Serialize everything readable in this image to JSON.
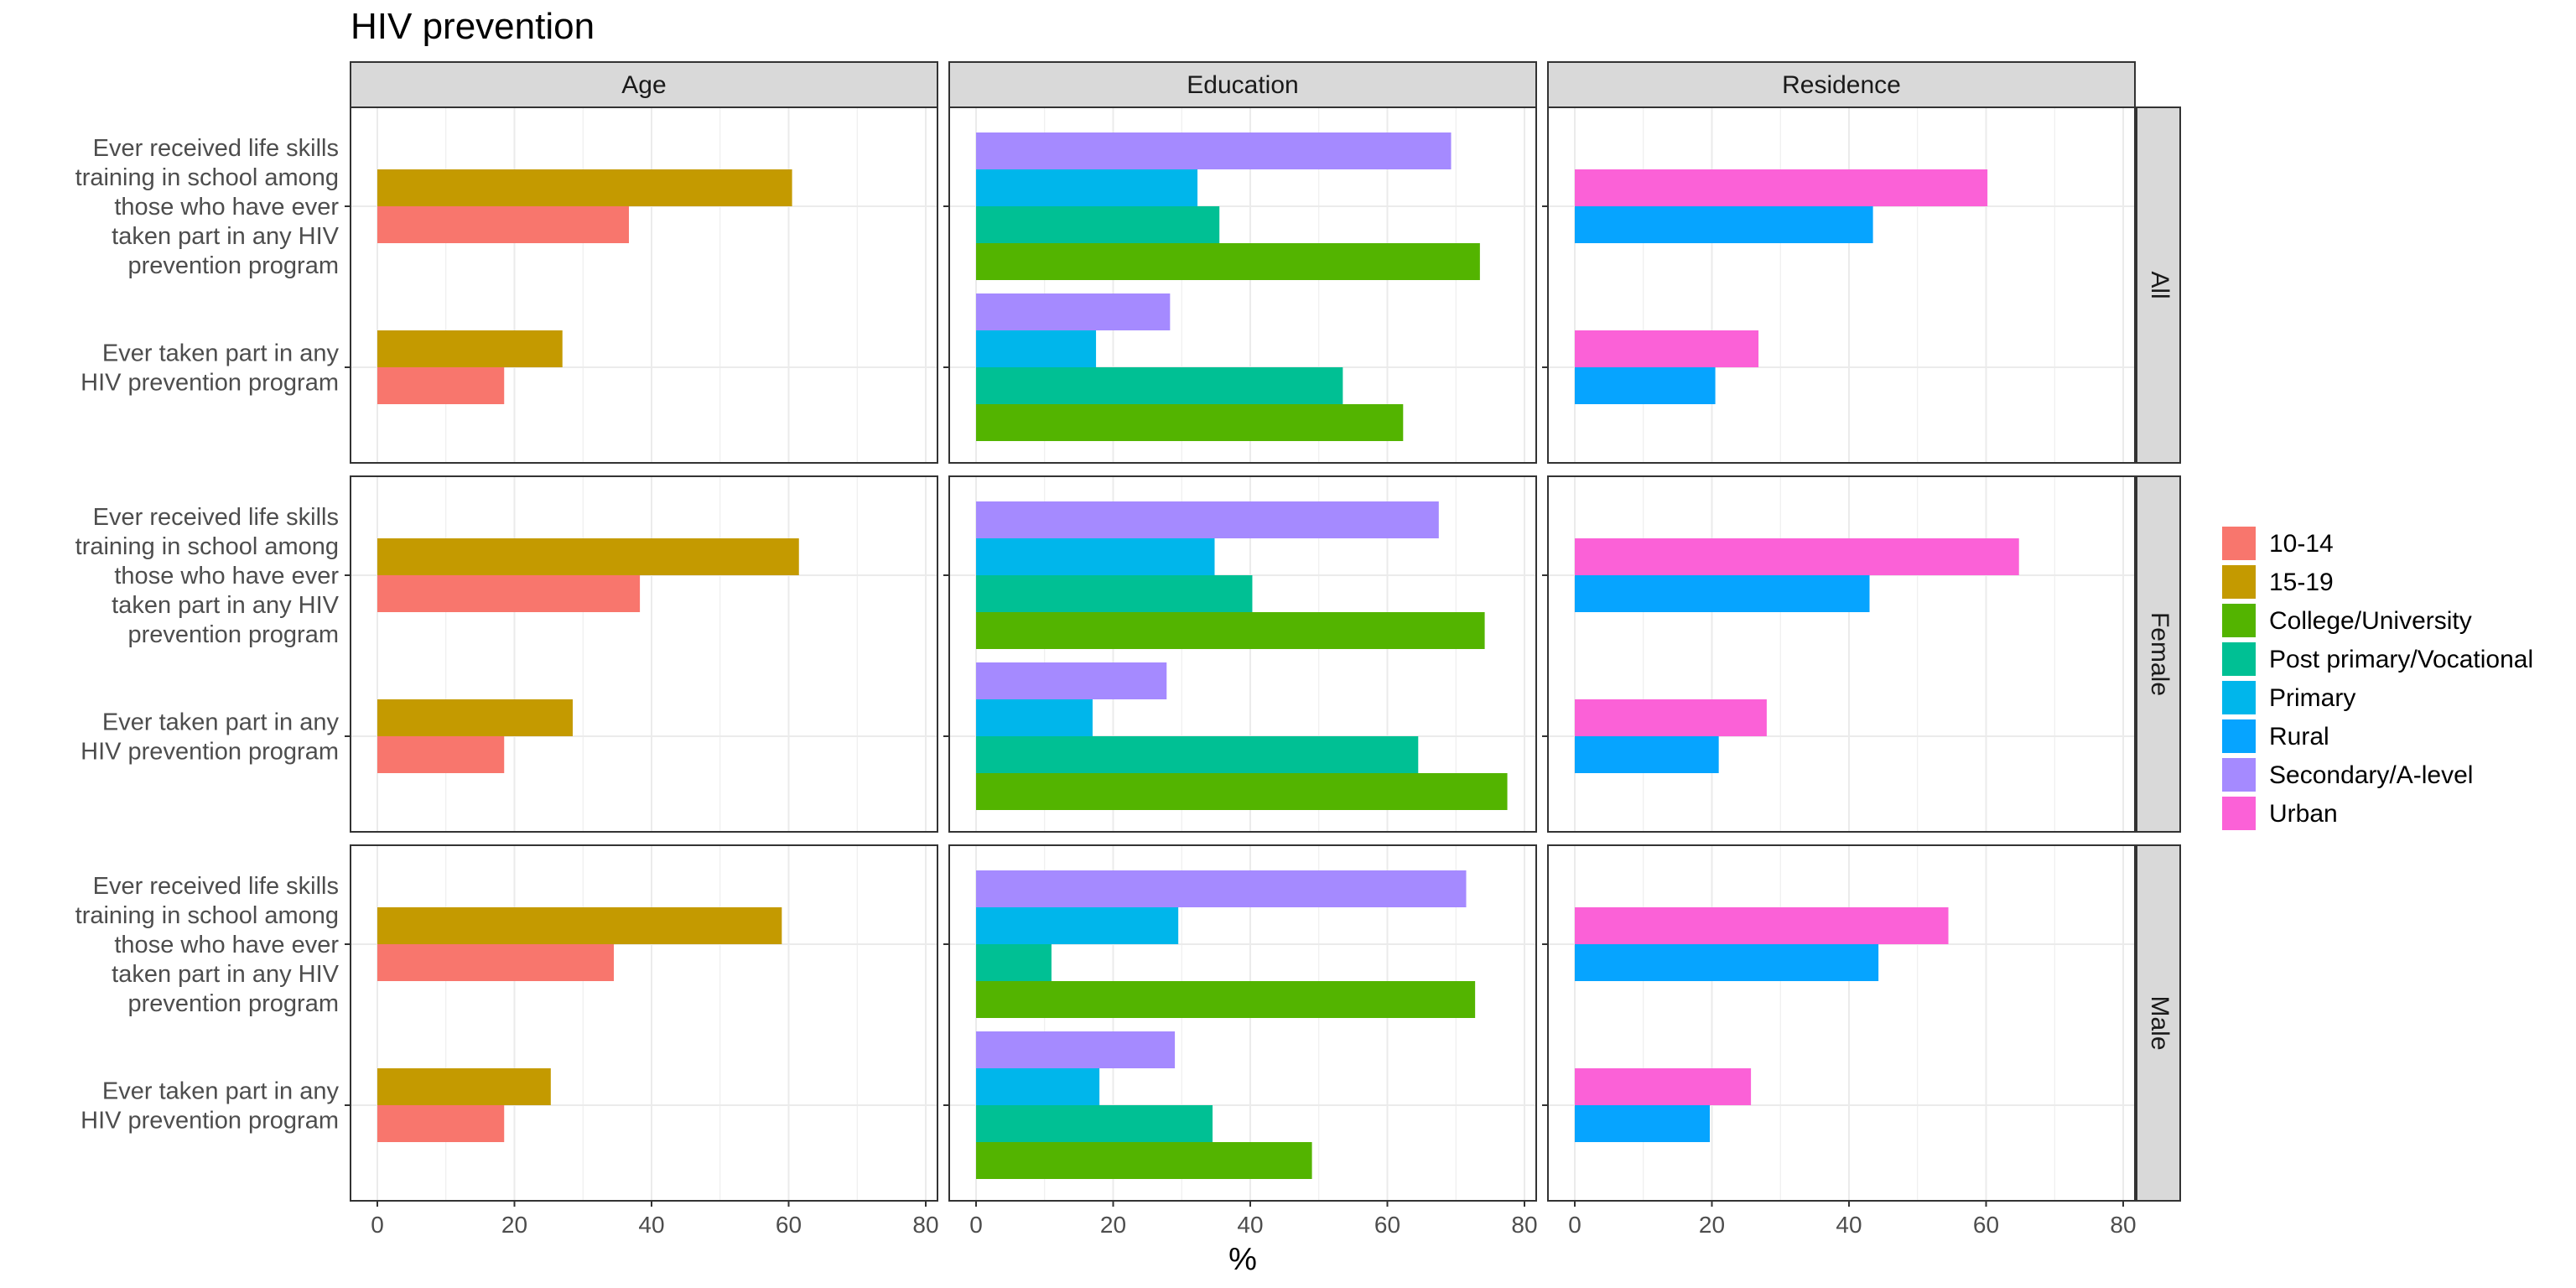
{
  "chart_data": {
    "type": "bar",
    "title": "HIV prevention",
    "xlabel": "%",
    "ylabel": "",
    "xlim": [
      0,
      80
    ],
    "xticks": [
      0,
      20,
      40,
      60,
      80
    ],
    "orientation": "horizontal",
    "facet_columns": [
      "Age",
      "Education",
      "Residence"
    ],
    "facet_rows": [
      "All",
      "Female",
      "Male"
    ],
    "categories": [
      "Ever received life skills\ntraining in school among\nthose who have ever\ntaken part in any HIV\nprevention program",
      "Ever taken part in any\nHIV prevention program"
    ],
    "colors": {
      "10-14": "#F8766D",
      "15-19": "#C49A00",
      "College/University": "#53B400",
      "Post primary/Vocational": "#00C094",
      "Primary": "#00B6EB",
      "Rural": "#06A4FF",
      "Secondary/A-level": "#A58AFF",
      "Urban": "#FB61D7"
    },
    "legend": {
      "position": "right",
      "entries": [
        "10-14",
        "15-19",
        "College/University",
        "Post primary/Vocational",
        "Primary",
        "Rural",
        "Secondary/A-level",
        "Urban"
      ]
    },
    "series_order": {
      "Age": [
        "15-19",
        "10-14"
      ],
      "Education": [
        "Secondary/A-level",
        "Primary",
        "Post primary/Vocational",
        "College/University"
      ],
      "Residence": [
        "Urban",
        "Rural"
      ]
    },
    "panels": {
      "All": {
        "Age": [
          [
            60.5,
            36.7
          ],
          [
            27,
            18.5
          ]
        ],
        "Education": [
          [
            69.3,
            32.3,
            35.5,
            73.5
          ],
          [
            28.3,
            17.5,
            53.5,
            62.3
          ]
        ],
        "Residence": [
          [
            60.2,
            43.5
          ],
          [
            26.8,
            20.5
          ]
        ]
      },
      "Female": {
        "Age": [
          [
            61.5,
            38.3
          ],
          [
            28.5,
            18.5
          ]
        ],
        "Education": [
          [
            67.5,
            34.8,
            40.3,
            74.2
          ],
          [
            27.8,
            17,
            64.5,
            77.5
          ]
        ],
        "Residence": [
          [
            64.8,
            43
          ],
          [
            28,
            21
          ]
        ]
      },
      "Male": {
        "Age": [
          [
            59,
            34.5
          ],
          [
            25.3,
            18.5
          ]
        ],
        "Education": [
          [
            71.5,
            29.5,
            11,
            72.8
          ],
          [
            29,
            18,
            34.5,
            49
          ]
        ],
        "Residence": [
          [
            54.5,
            44.3
          ],
          [
            25.7,
            19.7
          ]
        ]
      }
    }
  }
}
